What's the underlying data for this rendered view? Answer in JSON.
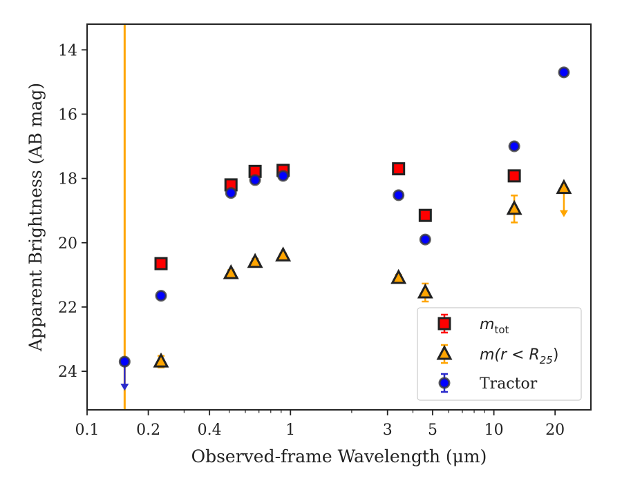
{
  "chart_data": {
    "type": "scatter",
    "xlabel": "Observed-frame Wavelength (μm)",
    "ylabel": "Apparent Brightness (AB mag)",
    "xscale": "log",
    "xlim": [
      0.1,
      30
    ],
    "ylim": [
      25.2,
      13.2
    ],
    "y_inverted": true,
    "x_ticks": [
      0.1,
      0.2,
      0.4,
      1,
      3,
      5,
      10,
      20
    ],
    "x_tick_labels": [
      "0.1",
      "0.2",
      "0.4",
      "1",
      "3",
      "5",
      "10",
      "20"
    ],
    "y_ticks": [
      14,
      16,
      18,
      20,
      22,
      24
    ],
    "y_tick_labels": [
      "14",
      "16",
      "18",
      "20",
      "22",
      "24"
    ],
    "grid": false,
    "legend_position": "bottom-right",
    "vline": {
      "x": 0.153,
      "color": "#ffa500"
    },
    "series": [
      {
        "name": "m_tot",
        "legend_main": "m",
        "legend_sub": "tot",
        "marker": "square",
        "color": "#ff0000",
        "errcolor": "#ff0000",
        "points": [
          {
            "x": 0.231,
            "y": 20.65,
            "err": 0.1
          },
          {
            "x": 0.51,
            "y": 18.2,
            "err": 0.1
          },
          {
            "x": 0.67,
            "y": 17.78,
            "err": 0.1
          },
          {
            "x": 0.92,
            "y": 17.75,
            "err": 0.08
          },
          {
            "x": 3.4,
            "y": 17.7,
            "err": 0.08
          },
          {
            "x": 4.6,
            "y": 19.15,
            "err": 0.08
          },
          {
            "x": 12.6,
            "y": 17.92,
            "err": 0.08
          }
        ]
      },
      {
        "name": "m(r<R_25)",
        "legend_main": "m(r < R",
        "legend_sub": "25",
        "legend_tail": ")",
        "marker": "triangle",
        "color": "#ffa500",
        "errcolor": "#ffa500",
        "points": [
          {
            "x": 0.231,
            "y": 23.7,
            "err": 0.18
          },
          {
            "x": 0.51,
            "y": 20.95,
            "err": 0.1
          },
          {
            "x": 0.67,
            "y": 20.6,
            "err": 0.1
          },
          {
            "x": 0.92,
            "y": 20.4,
            "err": 0.08
          },
          {
            "x": 3.4,
            "y": 21.1,
            "err": 0.1
          },
          {
            "x": 4.6,
            "y": 21.55,
            "err": 0.28
          },
          {
            "x": 12.6,
            "y": 18.95,
            "err": 0.42
          },
          {
            "x": 22.1,
            "y": 18.3,
            "upper_limit": true
          }
        ]
      },
      {
        "name": "Tractor",
        "legend_main": "Tractor",
        "marker": "circle",
        "color": "#0000ff",
        "errcolor": "#2a2acc",
        "points": [
          {
            "x": 0.153,
            "y": 23.7,
            "upper_limit": true
          },
          {
            "x": 0.231,
            "y": 21.65,
            "err": 0.08
          },
          {
            "x": 0.51,
            "y": 18.45,
            "err": 0.08
          },
          {
            "x": 0.67,
            "y": 18.05,
            "err": 0.08
          },
          {
            "x": 0.92,
            "y": 17.92,
            "err": 0.08
          },
          {
            "x": 3.4,
            "y": 18.52,
            "err": 0.08
          },
          {
            "x": 4.6,
            "y": 19.9,
            "err": 0.08
          },
          {
            "x": 12.6,
            "y": 17.0,
            "err": 0.08
          },
          {
            "x": 22.1,
            "y": 14.7,
            "err": 0.08
          }
        ]
      }
    ]
  }
}
